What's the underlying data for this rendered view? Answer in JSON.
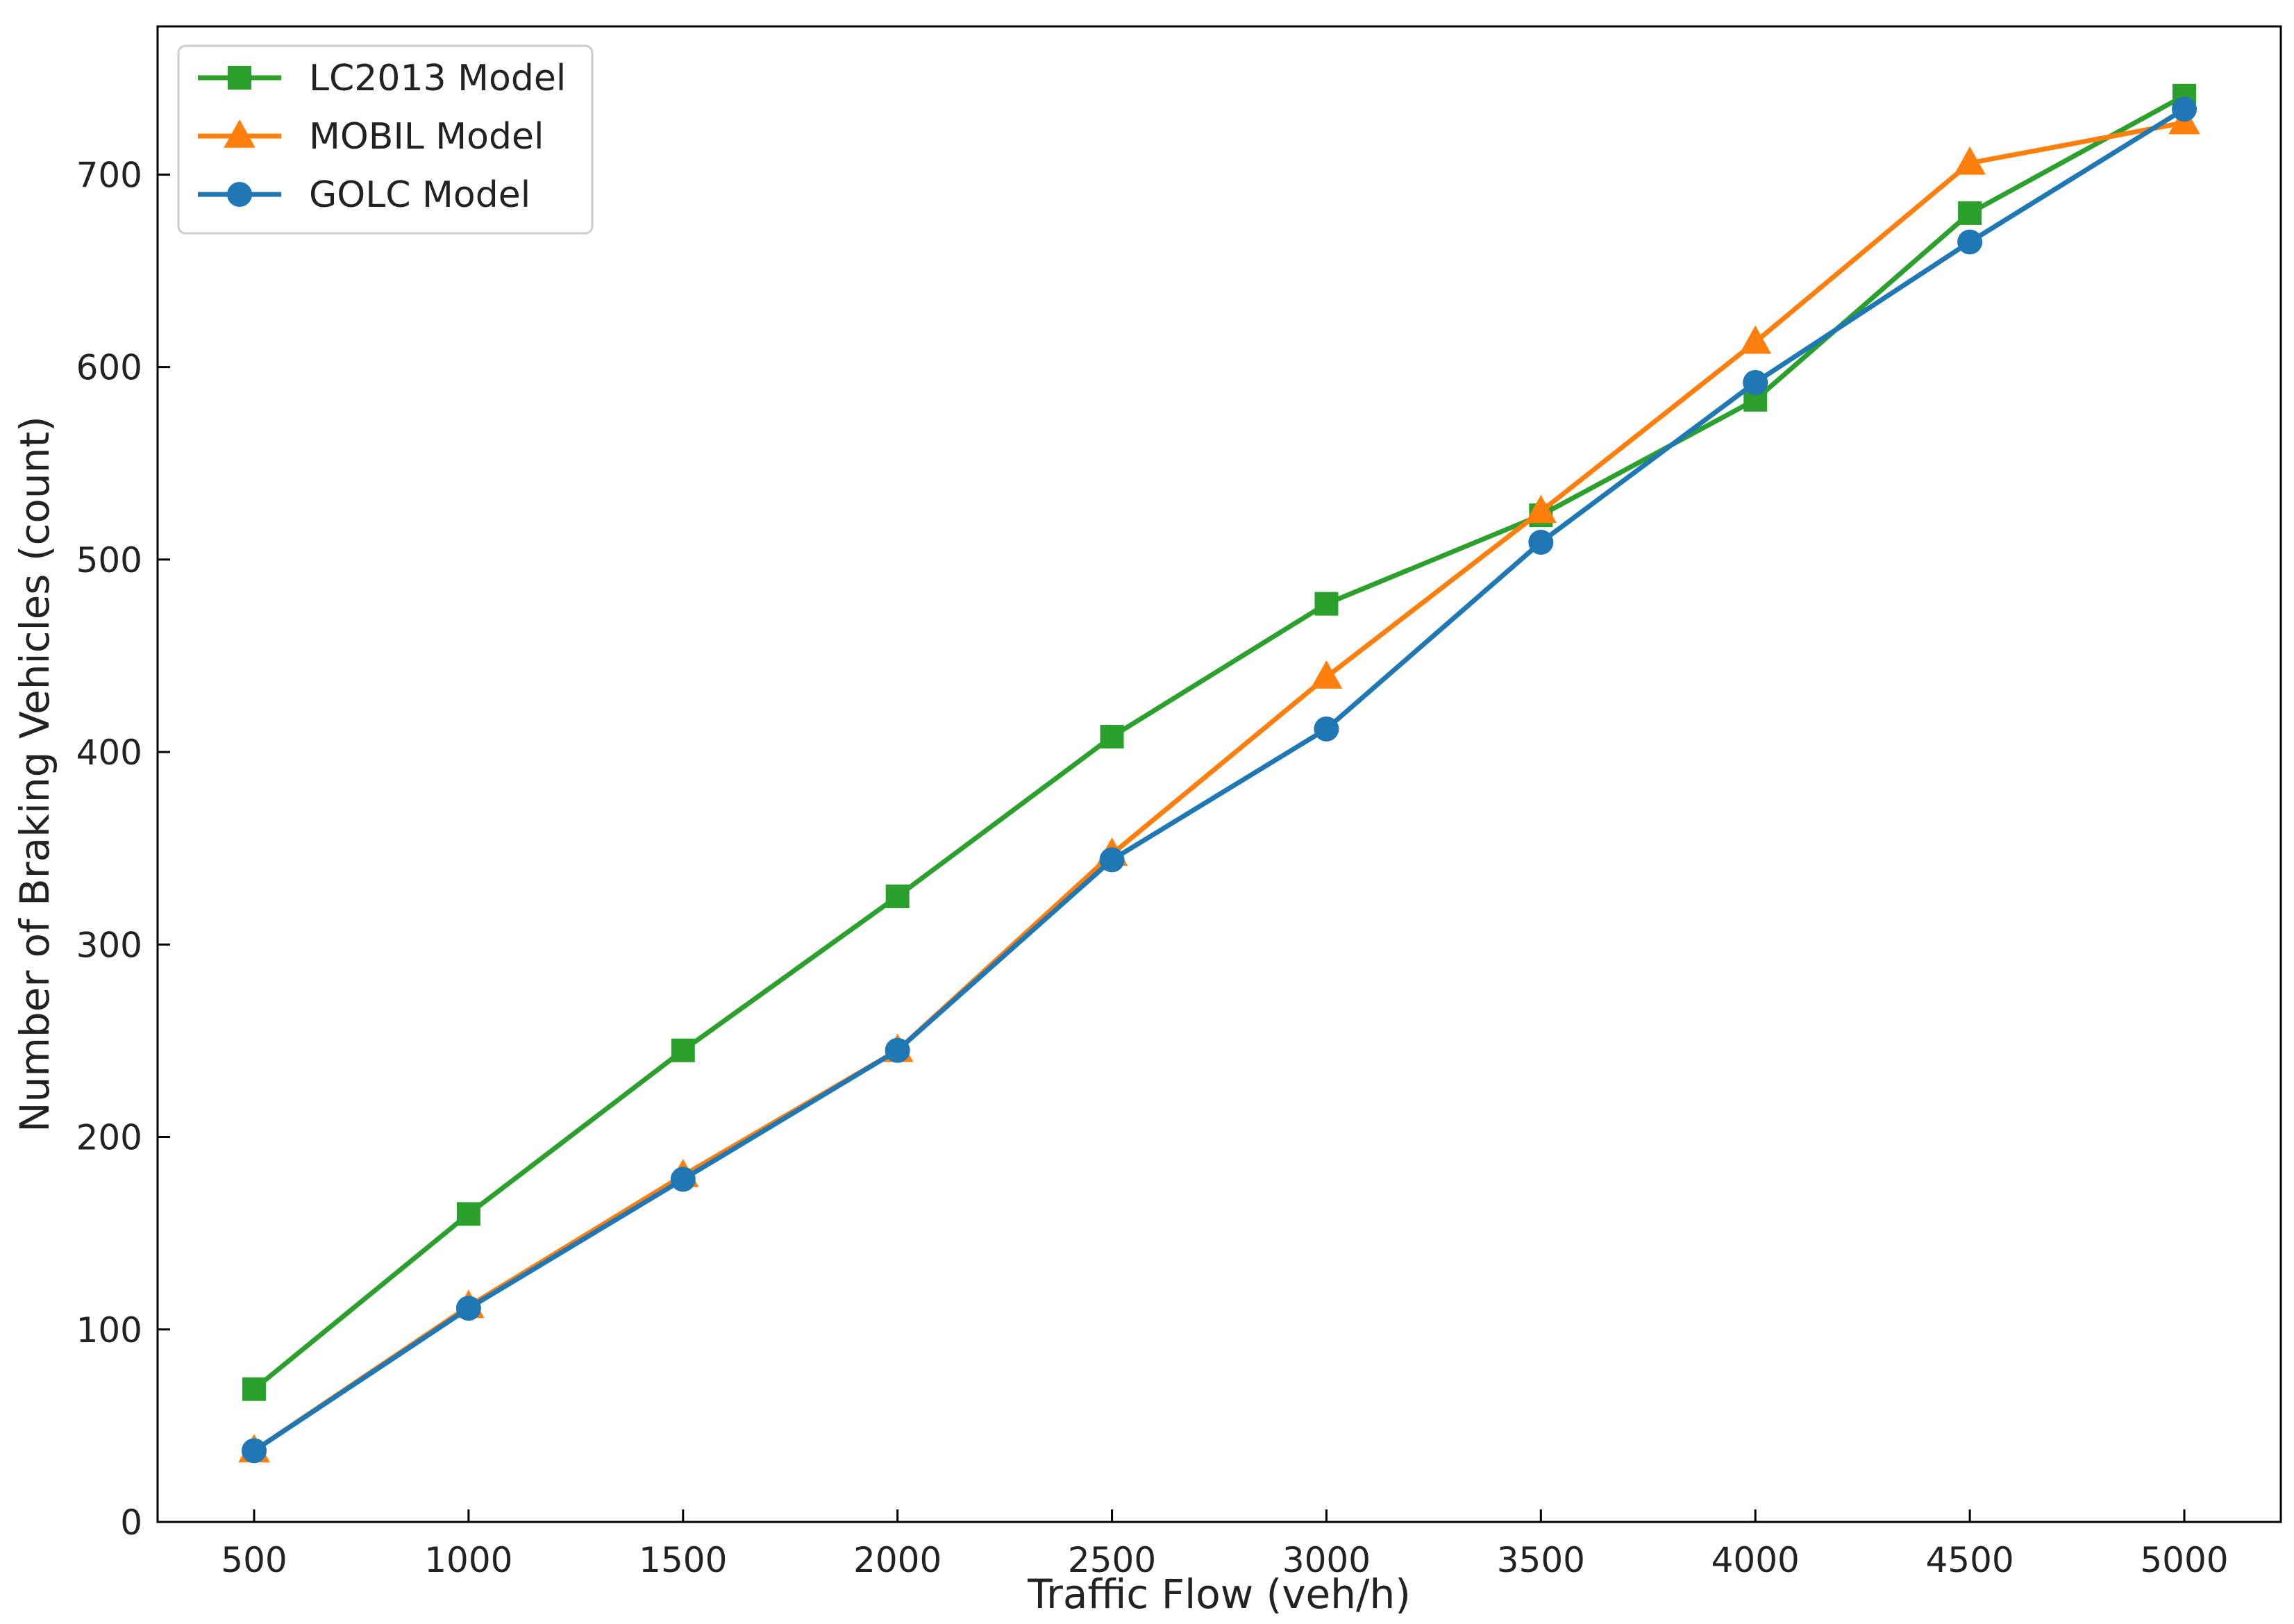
{
  "chart_data": {
    "type": "line",
    "xlabel": "Traffic Flow (veh/h)",
    "ylabel": "Number of Braking Vehicles (count)",
    "x": [
      500,
      1000,
      1500,
      2000,
      2500,
      3000,
      3500,
      4000,
      4500,
      5000
    ],
    "xlim": [
      275,
      5225
    ],
    "ylim": [
      0,
      777
    ],
    "xticks": [
      "500",
      "1000",
      "1500",
      "2000",
      "2500",
      "3000",
      "3500",
      "4000",
      "4500",
      "5000"
    ],
    "yticks": [
      "0",
      "100",
      "200",
      "300",
      "400",
      "500",
      "600",
      "700"
    ],
    "grid": false,
    "legend_position": "top-left",
    "series": [
      {
        "name": "LC2013 Model",
        "marker": "square",
        "color": "#2ca02c",
        "values": [
          69,
          160,
          245,
          325,
          408,
          477,
          523,
          583,
          680,
          741
        ]
      },
      {
        "name": "MOBIL Model",
        "marker": "triangle",
        "color": "#ff7f0e",
        "values": [
          37,
          112,
          180,
          245,
          347,
          439,
          525,
          613,
          706,
          727
        ]
      },
      {
        "name": "GOLC Model",
        "marker": "circle",
        "color": "#1f77b4",
        "values": [
          37,
          111,
          178,
          245,
          344,
          412,
          509,
          592,
          665,
          734
        ]
      }
    ]
  }
}
